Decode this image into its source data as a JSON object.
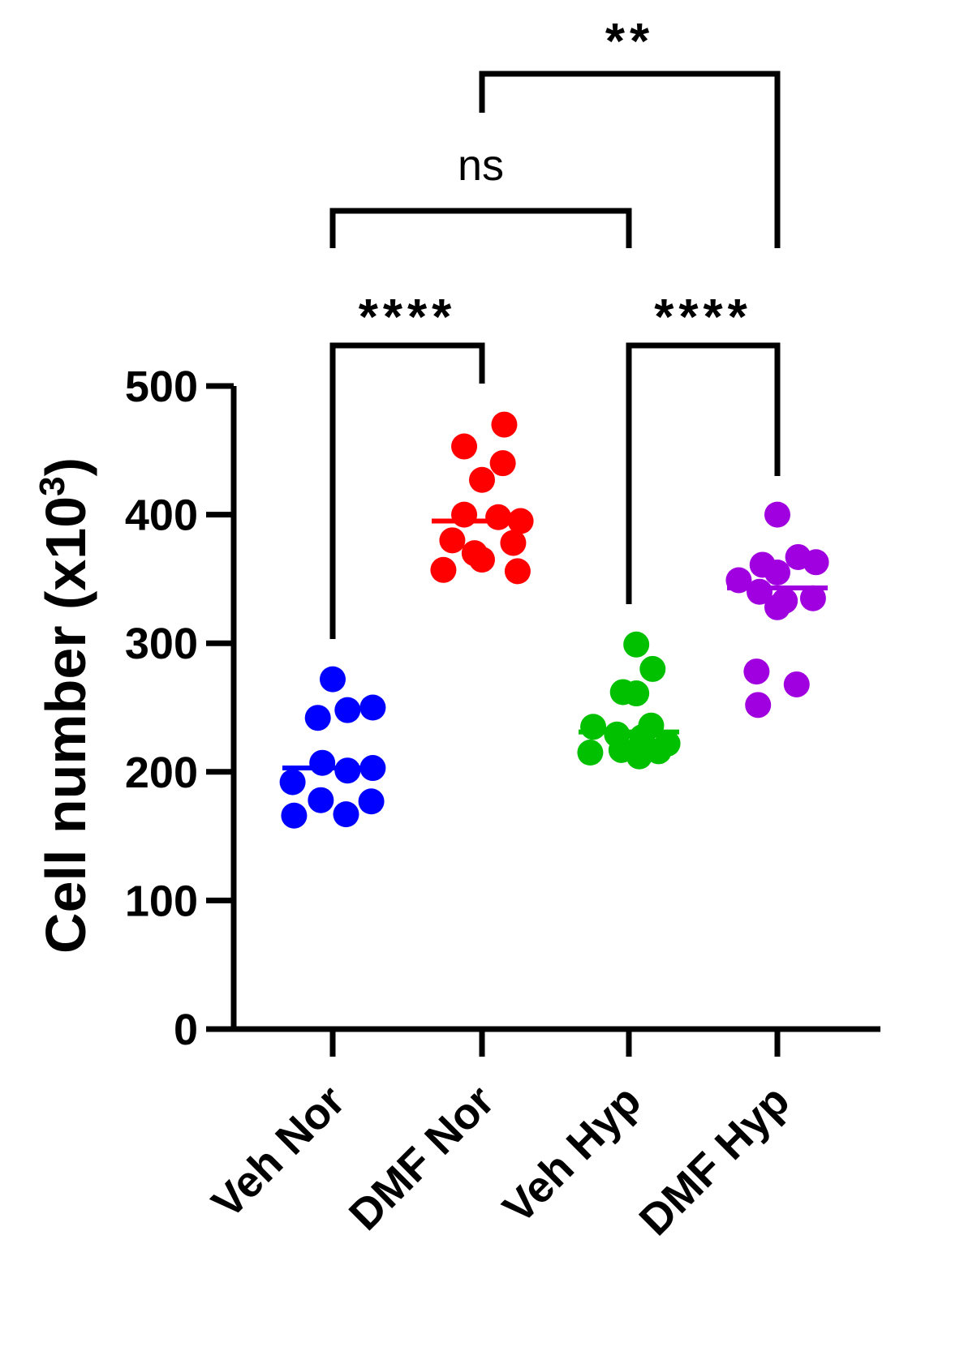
{
  "chart_data": {
    "type": "scatter",
    "subtype": "dot plot with median line",
    "title": "",
    "xlabel": "",
    "ylabel": {
      "main": "Cell number (x10",
      "sup": "3",
      "close": ")"
    },
    "ylim": [
      0,
      500
    ],
    "yticks": [
      "0",
      "100",
      "200",
      "300",
      "400",
      "500"
    ],
    "grid": false,
    "categories": [
      "Veh Nor",
      "DMF Nor",
      "Veh Hyp",
      "DMF Hyp"
    ],
    "series": [
      {
        "category": "Veh Nor",
        "color": "#0000ff",
        "median": 203,
        "points": [
          {
            "jitter": 0,
            "y": 272
          },
          {
            "jitter": -0.1,
            "y": 242
          },
          {
            "jitter": 0.1,
            "y": 248
          },
          {
            "jitter": 0.27,
            "y": 250
          },
          {
            "jitter": -0.07,
            "y": 207
          },
          {
            "jitter": 0.1,
            "y": 201
          },
          {
            "jitter": 0.27,
            "y": 203
          },
          {
            "jitter": -0.27,
            "y": 192
          },
          {
            "jitter": -0.08,
            "y": 178
          },
          {
            "jitter": 0.26,
            "y": 177
          },
          {
            "jitter": -0.26,
            "y": 166
          },
          {
            "jitter": 0.09,
            "y": 167
          }
        ]
      },
      {
        "category": "DMF Nor",
        "color": "#ff0000",
        "median": 395,
        "points": [
          {
            "jitter": 0.15,
            "y": 470
          },
          {
            "jitter": -0.12,
            "y": 453
          },
          {
            "jitter": 0.14,
            "y": 440
          },
          {
            "jitter": 0,
            "y": 427
          },
          {
            "jitter": -0.12,
            "y": 400
          },
          {
            "jitter": 0.11,
            "y": 398
          },
          {
            "jitter": 0.26,
            "y": 395
          },
          {
            "jitter": -0.2,
            "y": 380
          },
          {
            "jitter": 0.21,
            "y": 378
          },
          {
            "jitter": -0.05,
            "y": 370
          },
          {
            "jitter": 0,
            "y": 365
          },
          {
            "jitter": -0.26,
            "y": 357
          },
          {
            "jitter": 0.24,
            "y": 356
          }
        ]
      },
      {
        "category": "Veh Hyp",
        "color": "#00c000",
        "median": 231,
        "points": [
          {
            "jitter": 0.05,
            "y": 299
          },
          {
            "jitter": 0.16,
            "y": 280
          },
          {
            "jitter": -0.04,
            "y": 262
          },
          {
            "jitter": 0.05,
            "y": 261
          },
          {
            "jitter": -0.24,
            "y": 235
          },
          {
            "jitter": 0.15,
            "y": 236
          },
          {
            "jitter": -0.08,
            "y": 229
          },
          {
            "jitter": 0.09,
            "y": 227
          },
          {
            "jitter": 0.26,
            "y": 222
          },
          {
            "jitter": -0.26,
            "y": 215
          },
          {
            "jitter": -0.05,
            "y": 217
          },
          {
            "jitter": 0.07,
            "y": 212
          },
          {
            "jitter": 0.2,
            "y": 216
          }
        ]
      },
      {
        "category": "DMF Hyp",
        "color": "#a000e0",
        "median": 343,
        "points": [
          {
            "jitter": 0,
            "y": 400
          },
          {
            "jitter": 0.14,
            "y": 367
          },
          {
            "jitter": 0.26,
            "y": 363
          },
          {
            "jitter": -0.1,
            "y": 361
          },
          {
            "jitter": 0,
            "y": 355
          },
          {
            "jitter": -0.26,
            "y": 349
          },
          {
            "jitter": -0.12,
            "y": 340
          },
          {
            "jitter": 0.24,
            "y": 335
          },
          {
            "jitter": 0.05,
            "y": 333
          },
          {
            "jitter": 0,
            "y": 328
          },
          {
            "jitter": -0.14,
            "y": 278
          },
          {
            "jitter": 0.13,
            "y": 268
          },
          {
            "jitter": -0.13,
            "y": 252
          }
        ]
      }
    ],
    "comparisons": [
      {
        "from": 0,
        "to": 1,
        "label": "****",
        "style": "stars",
        "tier": 0
      },
      {
        "from": 2,
        "to": 3,
        "label": "****",
        "style": "stars",
        "tier": 0
      },
      {
        "from": 0,
        "to": 2,
        "label": "ns",
        "style": "text",
        "tier": 1
      },
      {
        "from": 1,
        "to": 3,
        "label": "**",
        "style": "stars",
        "tier": 2
      }
    ]
  }
}
